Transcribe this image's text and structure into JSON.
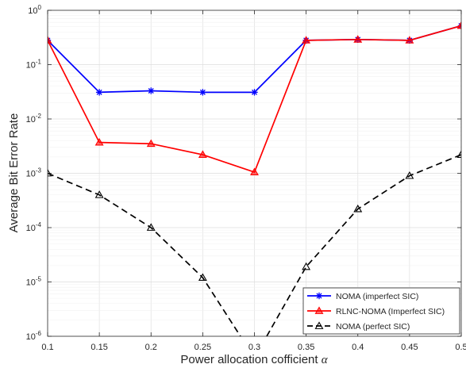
{
  "chart_data": {
    "type": "line",
    "xlabel": "Power allocation cofficient",
    "xlabel_symbol": "α",
    "ylabel": "Average Bit Error Rate",
    "yscale": "log",
    "xlim": [
      0.1,
      0.5
    ],
    "ylim": [
      1e-06,
      1
    ],
    "grid": true,
    "legend_position": "bottom-right",
    "x_ticks": [
      "0.1",
      "0.15",
      "0.2",
      "0.25",
      "0.3",
      "0.35",
      "0.4",
      "0.45",
      "0.5"
    ],
    "x": [
      0.1,
      0.15,
      0.2,
      0.25,
      0.3,
      0.35,
      0.4,
      0.45,
      0.5
    ],
    "y_ticks": [
      {
        "base": "10",
        "exp": "0"
      },
      {
        "base": "10",
        "exp": "-1"
      },
      {
        "base": "10",
        "exp": "-2"
      },
      {
        "base": "10",
        "exp": "-3"
      },
      {
        "base": "10",
        "exp": "-4"
      },
      {
        "base": "10",
        "exp": "-5"
      },
      {
        "base": "10",
        "exp": "-6"
      }
    ],
    "series": [
      {
        "name": "NOMA (imperfect SIC)",
        "color": "#0000ff",
        "marker": "asterisk",
        "dash": "solid",
        "values": [
          0.28,
          0.031,
          0.033,
          0.031,
          0.031,
          0.28,
          0.29,
          0.28,
          0.52
        ]
      },
      {
        "name": "RLNC-NOMA (Imperfect SIC)",
        "color": "#ff0000",
        "marker": "triangle-filled",
        "dash": "solid",
        "values": [
          0.28,
          0.0037,
          0.0035,
          0.0022,
          0.00105,
          0.28,
          0.29,
          0.28,
          0.52
        ]
      },
      {
        "name": "NOMA (perfect SIC)",
        "color": "#000000",
        "marker": "triangle-open",
        "dash": "dashed",
        "values": [
          0.001,
          0.0004,
          0.0001,
          1.2e-05,
          4e-07,
          1.9e-05,
          0.00022,
          0.0009,
          0.0022
        ]
      }
    ]
  }
}
